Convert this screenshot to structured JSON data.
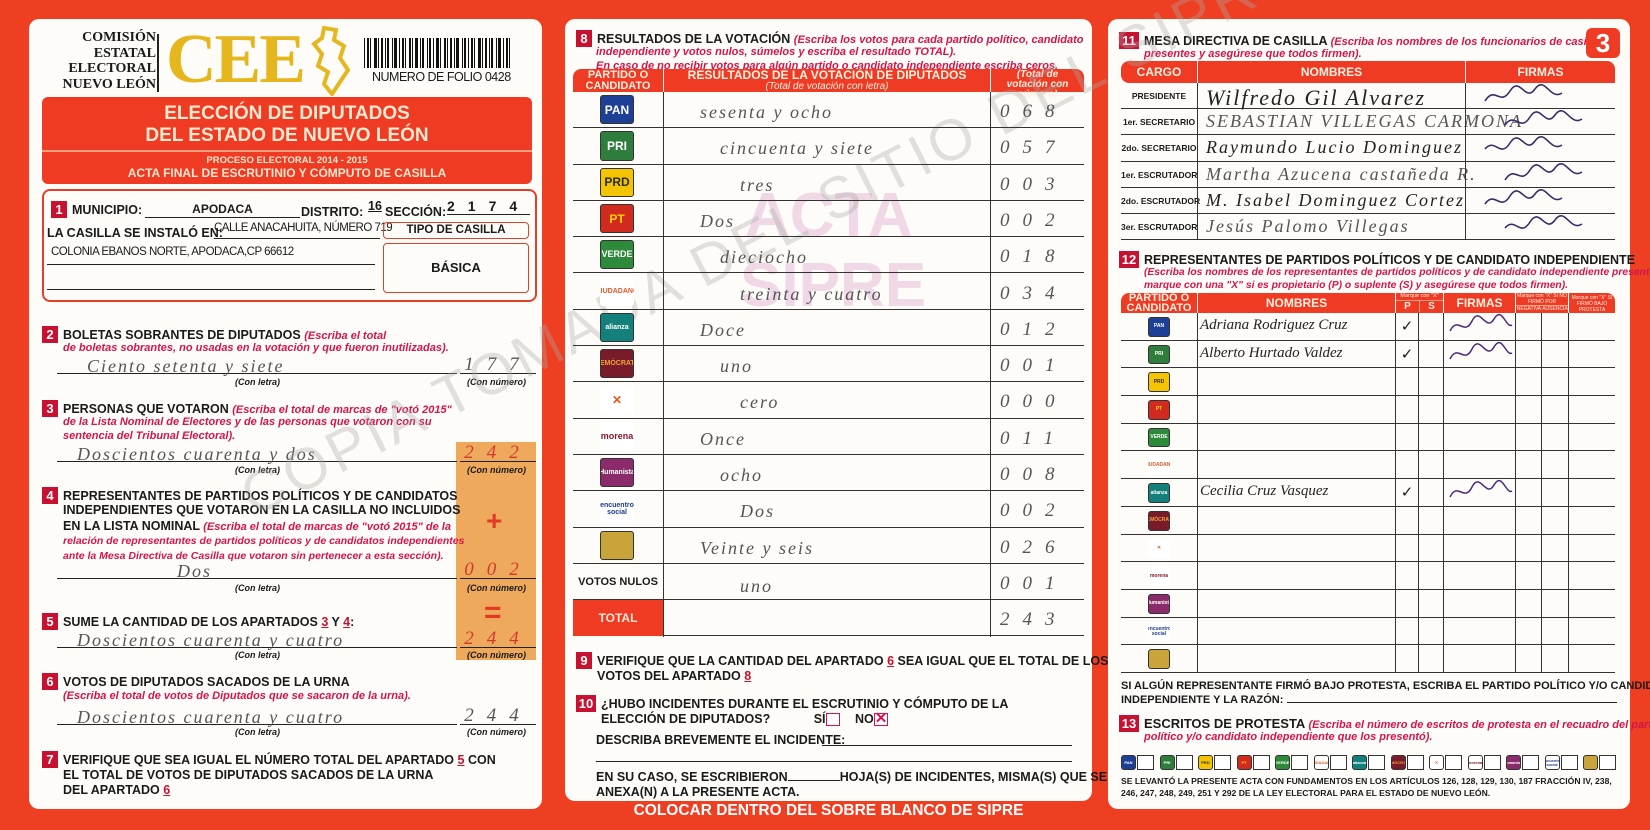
{
  "header": {
    "commission_lines": [
      "COMISIÓN",
      "ESTATAL",
      "ELECTORAL",
      "NUEVO LEÓN"
    ],
    "logo_text": "CEE",
    "folio": "NUMERO DE FOLIO 0428",
    "title_line1": "ELECCIÓN DE DIPUTADOS",
    "title_line2": "DEL ESTADO DE NUEVO LEÓN",
    "process": "PROCESO ELECTORAL 2014 - 2015",
    "subtitle": "ACTA FINAL DE ESCRUTINIO Y CÓMPUTO DE CASILLA",
    "page_number": "3"
  },
  "section1": {
    "num": "1",
    "municipio_label": "MUNICIPIO:",
    "municipio": "APODACA",
    "distrito_label": "DISTRITO:",
    "distrito": "16",
    "seccion_label": "SECCIÓN:",
    "seccion": "2174",
    "instalo_label": "LA CASILLA SE INSTALÓ EN:",
    "address1": "CALLE ANACAHUITA, NÚMERO 719",
    "address2": "COLONIA EBANOS NORTE, APODACA,CP 66612",
    "tipo_label": "TIPO DE CASILLA",
    "tipo": "BÁSICA"
  },
  "labels": {
    "con_letra": "(Con letra)",
    "con_numero": "(Con número)"
  },
  "section2": {
    "num": "2",
    "title": "BOLETAS SOBRANTES DE DIPUTADOS",
    "inst1": "(Escriba el total",
    "inst2": "de boletas sobrantes, no usadas en la votación y que fueron inutilizadas).",
    "letra": "Ciento setenta y siete",
    "numero": "177"
  },
  "section3": {
    "num": "3",
    "title": "PERSONAS QUE VOTARON",
    "inst1": "(Escriba el total de marcas de \"votó 2015\"",
    "inst2": "de la Lista Nominal de Electores y de las personas que votaron con su",
    "inst3": "sentencia del Tribunal Electoral).",
    "letra": "Doscientos cuarenta y dos",
    "numero": "242"
  },
  "section4": {
    "num": "4",
    "title1": "REPRESENTANTES DE PARTIDOS POLÍTICOS Y DE CANDIDATOS",
    "title2": "INDEPENDIENTES QUE VOTARON EN LA CASILLA NO INCLUIDOS",
    "title3": "EN LA LISTA NOMINAL",
    "inst1": "(Escriba el total de marcas de \"votó 2015\" de la",
    "inst2": "relación de representantes de partidos políticos y de candidatos independientes",
    "inst3": "ante la Mesa Directiva de Casilla que votaron sin pertenecer a esta sección).",
    "letra": "Dos",
    "numero": "002",
    "plus": "+",
    "equals": "="
  },
  "section5": {
    "num": "5",
    "title": "SUME LA CANTIDAD DE LOS APARTADOS",
    "a": "3",
    "y": "Y",
    "b": "4",
    "colon": ":",
    "letra": "Doscientos cuarenta y cuatro",
    "numero": "244"
  },
  "section6": {
    "num": "6",
    "title": "VOTOS DE DIPUTADOS SACADOS DE LA URNA",
    "inst": "(Escriba el total de votos de Diputados que se sacaron de la urna).",
    "letra": "Doscientos cuarenta y cuatro",
    "numero": "244"
  },
  "section7": {
    "num": "7",
    "line1a": "VERIFIQUE QUE SEA IGUAL EL NÚMERO TOTAL DEL APARTADO",
    "ref1": "5",
    "line1b": "CON",
    "line2": "EL TOTAL DE VOTOS DE DIPUTADOS SACADOS DE LA URNA",
    "line3": "DEL APARTADO",
    "ref2": "6"
  },
  "section8": {
    "num": "8",
    "title": "RESULTADOS DE LA VOTACIÓN",
    "inst1": "(Escriba los votos para cada partido político, candidato",
    "inst2": "independiente y votos nulos, súmelos y escriba el resultado TOTAL).",
    "inst3": "En caso de no recibir votos para algún partido o candidato independiente escriba ceros.",
    "col_party": "PARTIDO O CANDIDATO",
    "col_letra": "RESULTADOS DE LA VOTACIÓN DE DIPUTADOS",
    "col_letra_sub": "(Total de votación con letra)",
    "col_numero": "(Total de votación con número)",
    "parties": [
      {
        "logo": "PAN",
        "bg": "#1d3f95",
        "fg": "#ffffff",
        "letra": "sesenta y ocho",
        "numero": "068"
      },
      {
        "logo": "PRI",
        "bg": "#2f7d3c",
        "fg": "#ffffff",
        "letra": "cincuenta y siete",
        "numero": "057"
      },
      {
        "logo": "PRD",
        "bg": "#f4c400",
        "fg": "#2b2b2b",
        "letra": "tres",
        "numero": "003"
      },
      {
        "logo": "PT",
        "bg": "#d32a1f",
        "fg": "#ffd400",
        "letra": "Dos",
        "numero": "002"
      },
      {
        "logo": "VERDE",
        "bg": "#2c8a3a",
        "fg": "#ffffff",
        "letra": "dieciocho",
        "numero": "018"
      },
      {
        "logo": "CIUDADANO",
        "bg": "#ffffff",
        "fg": "#e25a2a",
        "letra": "treinta y cuatro",
        "numero": "034"
      },
      {
        "logo": "alianza",
        "bg": "#14807b",
        "fg": "#ffffff",
        "letra": "Doce",
        "numero": "012"
      },
      {
        "logo": "DEMÓCRATA",
        "bg": "#7a1b2c",
        "fg": "#f1a232",
        "letra": "uno",
        "numero": "001"
      },
      {
        "logo": "✕",
        "bg": "#ffffff",
        "fg": "#e35b1a",
        "letra": "cero",
        "numero": "000"
      },
      {
        "logo": "morena",
        "bg": "#ffffff",
        "fg": "#8a1a2a",
        "letra": "Once",
        "numero": "011"
      },
      {
        "logo": "Humanista",
        "bg": "#8c2b6b",
        "fg": "#ffffff",
        "letra": "ocho",
        "numero": "008"
      },
      {
        "logo": "encuentro social",
        "bg": "#ffffff",
        "fg": "#1e3c8a",
        "letra": "Dos",
        "numero": "002"
      },
      {
        "logo": "",
        "bg": "#c9a43a",
        "fg": "#2a5a1a",
        "letra": "Veinte y seis",
        "numero": "026"
      }
    ],
    "nulos_label": "VOTOS NULOS",
    "nulos_letra": "uno",
    "nulos_numero": "001",
    "total_label": "TOTAL",
    "total_numero": "243"
  },
  "section9": {
    "num": "9",
    "line1a": "VERIFIQUE QUE LA CANTIDAD DEL APARTADO",
    "ref1": "6",
    "line1b": "SEA IGUAL QUE EL TOTAL DE LOS",
    "line2": "VOTOS DEL APARTADO",
    "ref2": "8"
  },
  "section10": {
    "num": "10",
    "line1": "¿HUBO INCIDENTES DURANTE EL ESCRUTINIO Y CÓMPUTO DE LA",
    "line2": "ELECCIÓN DE DIPUTADOS?",
    "si": "SÍ",
    "no": "NO",
    "si_checked": false,
    "no_checked": true,
    "describe": "DESCRIBA BREVEMENTE EL INCIDENTE:",
    "anexo1a": "EN SU CASO, SE ESCRIBIERON",
    "anexo1b": "HOJA(S) DE INCIDENTES, MISMA(S) QUE SE",
    "anexo2": "ANEXA(N) A LA PRESENTE ACTA."
  },
  "section11": {
    "num": "11",
    "title": "MESA DIRECTIVA DE CASILLA",
    "inst1": "(Escriba los nombres de los funcionarios de casilla",
    "inst2": "presentes y asegúrese que todos firmen).",
    "col_cargo": "CARGO",
    "col_nombres": "NOMBRES",
    "col_firmas": "FIRMAS",
    "rows": [
      {
        "cargo": "PRESIDENTE",
        "nombre": "Wilfredo Gil Alvarez"
      },
      {
        "cargo": "1er. SECRETARIO",
        "nombre": "SEBASTIAN VILLEGAS CARMONA"
      },
      {
        "cargo": "2do. SECRETARIO",
        "nombre": "Raymundo Lucio Dominguez"
      },
      {
        "cargo": "1er. ESCRUTADOR",
        "nombre": "Martha Azucena castañeda R."
      },
      {
        "cargo": "2do. ESCRUTADOR",
        "nombre": "M. Isabel Dominguez Cortez"
      },
      {
        "cargo": "3er. ESCRUTADOR",
        "nombre": "Jesús Palomo Villegas"
      }
    ]
  },
  "section12": {
    "num": "12",
    "title": "REPRESENTANTES DE PARTIDOS POLÍTICOS Y DE CANDIDATO INDEPENDIENTE",
    "inst1": "(Escriba los nombres de los representantes de partidos políticos y de candidato independiente presentes,",
    "inst2": "marque con una \"X\" si es propietario (P) o suplente (S) y asegúrese que todos firmen).",
    "col_party": "PARTIDO O CANDIDATO",
    "col_nombres": "NOMBRES",
    "col_mark": "Marque con \"X\"",
    "col_p": "P",
    "col_s": "S",
    "col_firmas": "FIRMAS",
    "col_no_firmo": "Marque con \"X\" SI NO FIRMÓ POR",
    "col_negativa": "NEGATIVA",
    "col_ausencia": "AUSENCIA",
    "col_protesta": "Marque con \"X\" SI FIRMÓ BAJO PROTESTA",
    "reps": [
      {
        "nombre": "Adriana Rodriguez Cruz",
        "p": "✓",
        "s": "",
        "signed": true
      },
      {
        "nombre": "Alberto Hurtado Valdez",
        "p": "✓",
        "s": "",
        "signed": true
      },
      {
        "nombre": "",
        "p": "",
        "s": "",
        "signed": false
      },
      {
        "nombre": "",
        "p": "",
        "s": "",
        "signed": false
      },
      {
        "nombre": "",
        "p": "",
        "s": "",
        "signed": false
      },
      {
        "nombre": "",
        "p": "",
        "s": "",
        "signed": false
      },
      {
        "nombre": "Cecilia Cruz Vasquez",
        "p": "✓",
        "s": "",
        "signed": true
      },
      {
        "nombre": "",
        "p": "",
        "s": "",
        "signed": false
      },
      {
        "nombre": "",
        "p": "",
        "s": "",
        "signed": false
      },
      {
        "nombre": "",
        "p": "",
        "s": "",
        "signed": false
      },
      {
        "nombre": "",
        "p": "",
        "s": "",
        "signed": false
      },
      {
        "nombre": "",
        "p": "",
        "s": "",
        "signed": false
      },
      {
        "nombre": "",
        "p": "",
        "s": "",
        "signed": false
      }
    ],
    "protesta1": "SI ALGÚN REPRESENTANTE FIRMÓ BAJO PROTESTA, ESCRIBA EL PARTIDO POLÍTICO Y/O CANDIDATO",
    "protesta2": "INDEPENDIENTE Y LA RAZÓN:"
  },
  "section13": {
    "num": "13",
    "title": "ESCRITOS DE PROTESTA",
    "inst1": "(Escriba el número de escritos de protesta en el recuadro del partido",
    "inst2": "político y/o candidato independiente que los presentó).",
    "footer1": "SE LEVANTÓ LA PRESENTE ACTA CON FUNDAMENTOS EN LOS ARTÍCULOS 126, 128, 129, 130, 187 FRACCIÓN IV, 238,",
    "footer2": "246, 247, 248, 249, 251 Y 292 DE LA LEY ELECTORAL PARA EL ESTADO DE NUEVO LEÓN."
  },
  "banner": "COLOCAR DENTRO DEL SOBRE BLANCO DE SIPRE",
  "watermarks": {
    "stamp1": "ACTA",
    "stamp2": "SIPRE",
    "diagonal": "COPIA TOMADA DEL SITIO DEL SIPRE"
  },
  "colors": {
    "frame": "#ee3f22",
    "header_red": "#ef3b24",
    "instruction": "#d3154c",
    "badge": "#c81030",
    "logo_gold": "#e6b61e",
    "sum_box": "#eda04a"
  }
}
